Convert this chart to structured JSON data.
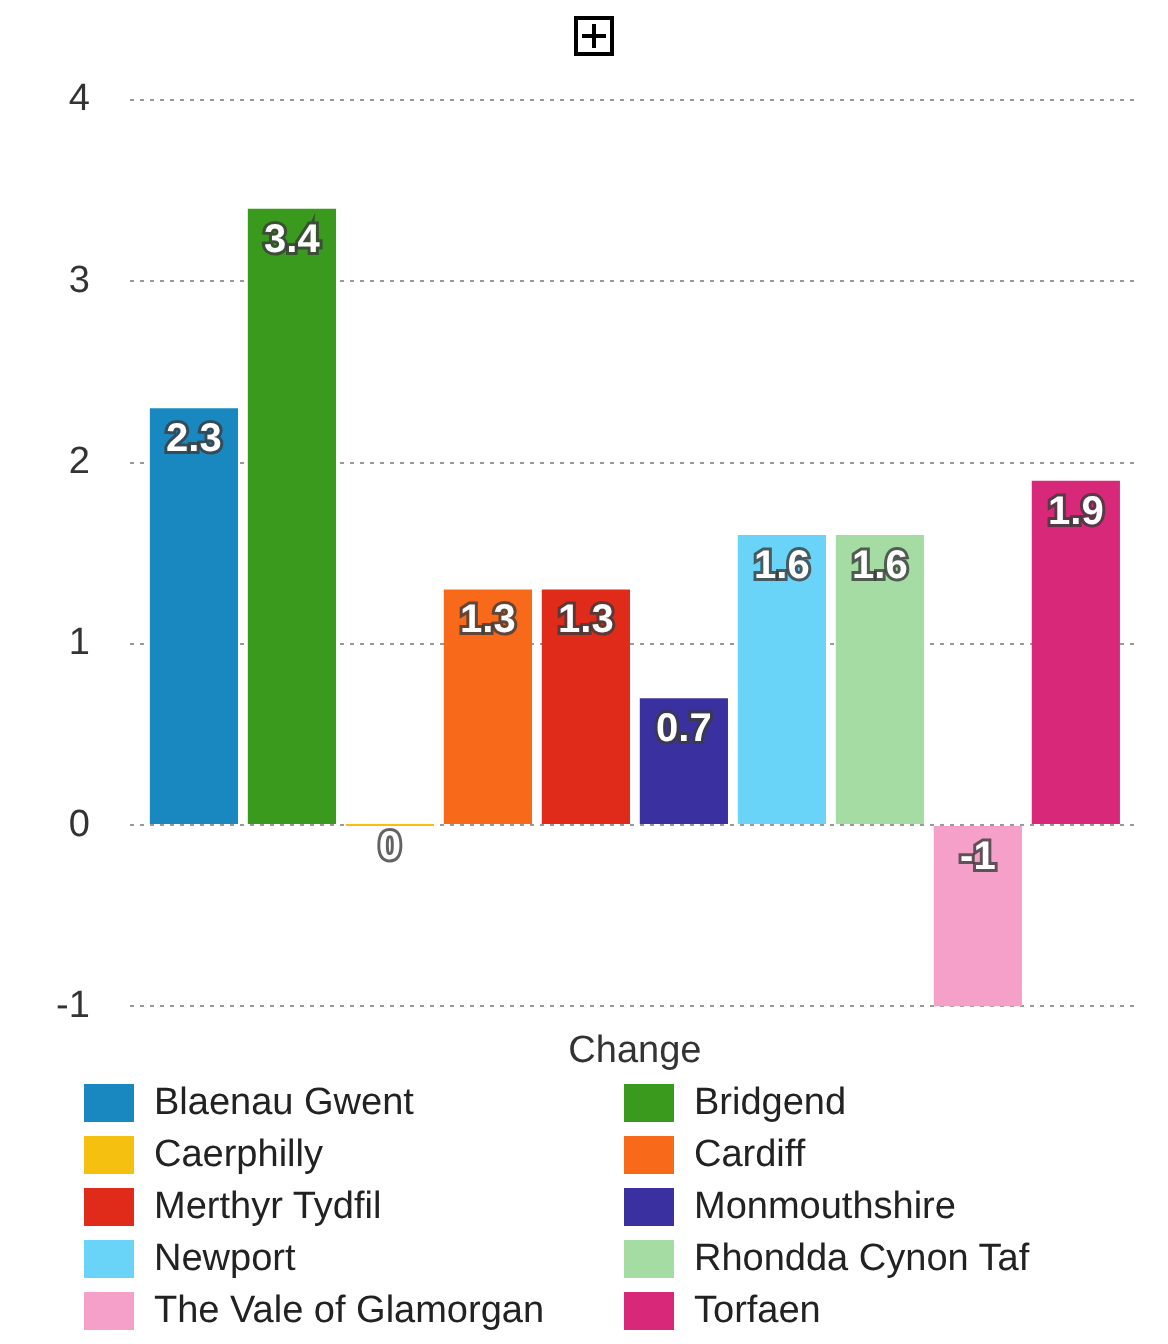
{
  "chart_data": {
    "type": "bar",
    "categories": [
      "Change"
    ],
    "series": [
      {
        "name": "Blaenau Gwent",
        "color": "#1a88c0",
        "values": [
          2.3
        ]
      },
      {
        "name": "Bridgend",
        "color": "#3a9a1e",
        "values": [
          3.4
        ]
      },
      {
        "name": "Caerphilly",
        "color": "#f5c010",
        "values": [
          0
        ]
      },
      {
        "name": "Cardiff",
        "color": "#f86a1a",
        "values": [
          1.3
        ]
      },
      {
        "name": "Merthyr Tydfil",
        "color": "#e02a1a",
        "values": [
          1.3
        ]
      },
      {
        "name": "Monmouthshire",
        "color": "#3a30a0",
        "values": [
          0.7
        ]
      },
      {
        "name": "Newport",
        "color": "#6ad4f8",
        "values": [
          1.6
        ]
      },
      {
        "name": "Rhondda Cynon Taf",
        "color": "#a4dca4",
        "values": [
          1.6
        ]
      },
      {
        "name": "The Vale of Glamorgan",
        "color": "#f4a0c8",
        "values": [
          -1
        ]
      },
      {
        "name": "Torfaen",
        "color": "#d8287a",
        "values": [
          1.9
        ]
      }
    ],
    "ylim": [
      -1,
      4
    ],
    "yticks": [
      -1,
      0,
      1,
      2,
      3,
      4
    ],
    "grid": "y",
    "legend": "bottom",
    "data_labels": true
  }
}
